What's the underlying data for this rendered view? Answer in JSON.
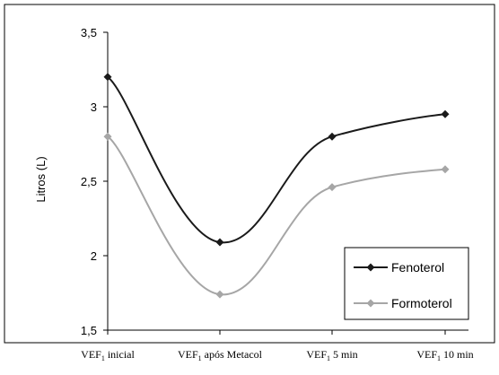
{
  "chart_data": {
    "type": "line",
    "categories": [
      {
        "main": "VEF",
        "sub": "1",
        "rest": "inicial"
      },
      {
        "main": "VEF",
        "sub": "1",
        "rest": "após Metacol"
      },
      {
        "main": "VEF",
        "sub": "1",
        "rest": "5 min"
      },
      {
        "main": "VEF",
        "sub": "1",
        "rest": "10 min"
      }
    ],
    "series": [
      {
        "name": "Fenoterol",
        "values": [
          3.2,
          2.09,
          2.8,
          2.95
        ],
        "color": "#1a1a1a",
        "marker": "diamond"
      },
      {
        "name": "Formoterol",
        "values": [
          2.8,
          1.74,
          2.46,
          2.58
        ],
        "color": "#a6a6a6",
        "marker": "diamond"
      }
    ],
    "ylabel": "Litros (L)",
    "xlabel": "",
    "ylim": [
      1.5,
      3.5
    ],
    "yticks": [
      "1,5",
      "2",
      "2,5",
      "3",
      "3,5"
    ],
    "ytick_values": [
      1.5,
      2,
      2.5,
      3,
      3.5
    ],
    "grid": false,
    "legend": "bottom-right",
    "smooth": true
  }
}
